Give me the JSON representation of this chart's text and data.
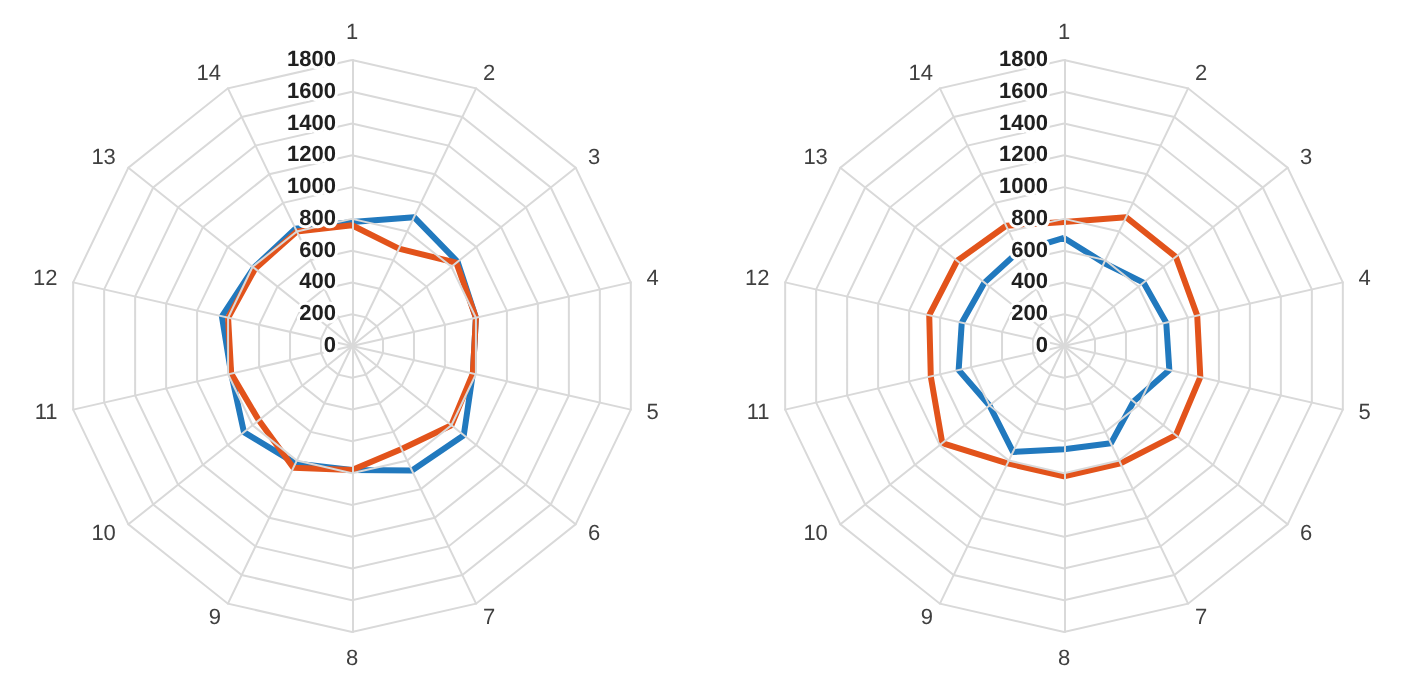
{
  "chart_data": [
    {
      "type": "radar",
      "categories": [
        "1",
        "2",
        "3",
        "4",
        "5",
        "6",
        "7",
        "8",
        "9",
        "10",
        "11",
        "12",
        "13",
        "14"
      ],
      "ylim": [
        0,
        1800
      ],
      "yticks": [
        0,
        200,
        400,
        600,
        800,
        1000,
        1200,
        1400,
        1600,
        1800
      ],
      "grid": true,
      "marker": "none",
      "series": [
        {
          "color": "#2179be",
          "values": [
            780,
            900,
            850,
            800,
            780,
            900,
            870,
            780,
            820,
            870,
            780,
            840,
            790,
            820
          ]
        },
        {
          "color": "#e2531b",
          "values": [
            760,
            680,
            840,
            800,
            780,
            800,
            720,
            780,
            850,
            750,
            780,
            800,
            780,
            800
          ]
        }
      ]
    },
    {
      "type": "radar",
      "categories": [
        "1",
        "2",
        "3",
        "4",
        "5",
        "6",
        "7",
        "8",
        "9",
        "10",
        "11",
        "12",
        "13",
        "14"
      ],
      "ylim": [
        0,
        1800
      ],
      "yticks": [
        0,
        200,
        400,
        600,
        800,
        1000,
        1200,
        1400,
        1600,
        1800
      ],
      "grid": true,
      "marker": "none",
      "series": [
        {
          "color": "#2179be",
          "values": [
            680,
            580,
            640,
            660,
            680,
            560,
            680,
            650,
            740,
            600,
            680,
            660,
            640,
            660
          ]
        },
        {
          "color": "#e2531b",
          "values": [
            780,
            900,
            900,
            860,
            880,
            900,
            820,
            820,
            820,
            980,
            860,
            870,
            860,
            840
          ]
        }
      ]
    }
  ]
}
